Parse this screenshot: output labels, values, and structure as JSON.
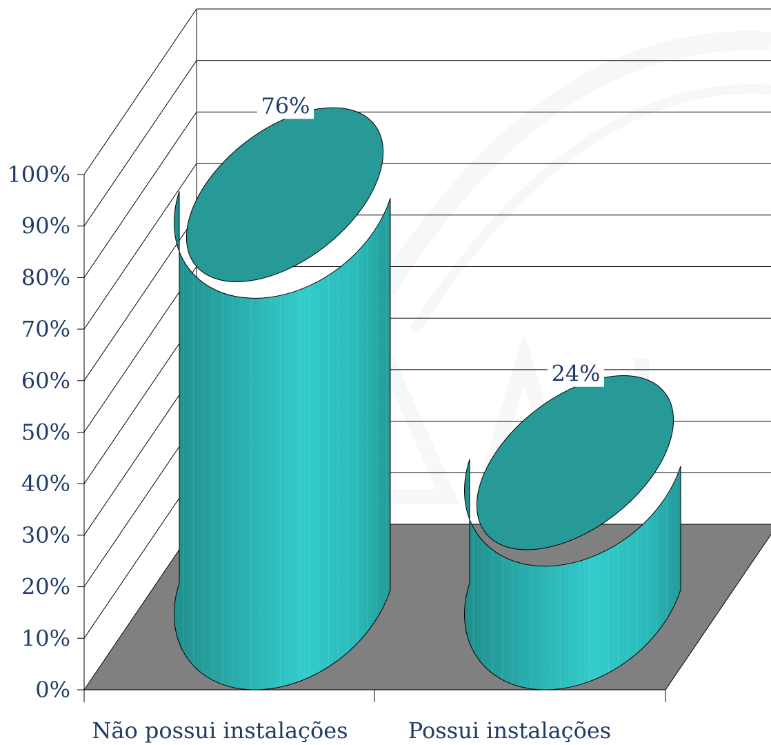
{
  "chart_data": {
    "type": "bar",
    "style": "3d-cylinder",
    "categories": [
      "Não possui instalações",
      "Possui instalações"
    ],
    "values": [
      76,
      24
    ],
    "data_labels": [
      "76%",
      "24%"
    ],
    "y_ticks": [
      "0%",
      "10%",
      "20%",
      "30%",
      "40%",
      "50%",
      "60%",
      "70%",
      "80%",
      "90%",
      "100%"
    ],
    "ylim": [
      0,
      100
    ],
    "grid": true,
    "legend": "none"
  },
  "colors": {
    "cylinder_top": "#279a97",
    "cylinder_body": "#2fc4c4",
    "floor": "#808080",
    "text": "#1f3a66",
    "grid": "#000000"
  }
}
